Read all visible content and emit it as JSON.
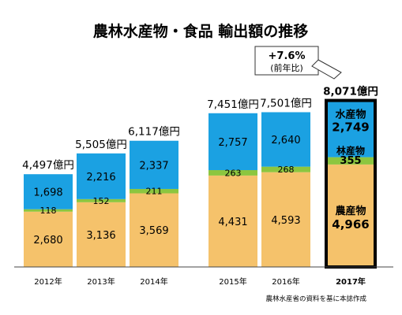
{
  "chart_data": {
    "type": "bar",
    "stacked": true,
    "title": "農林水産物・食品 輸出額の推移",
    "source": "農林水産省の資料を基に本誌作成",
    "categories": [
      "2012年",
      "2013年",
      "2014年",
      "2015年",
      "2016年",
      "2017年"
    ],
    "totals": [
      "4,497億円",
      "5,505億円",
      "6,117億円",
      "7,451億円",
      "7,501億円",
      "8,071億円"
    ],
    "series": [
      {
        "name": "農産物",
        "values": [
          2680,
          3136,
          3569,
          4431,
          4593,
          4966
        ],
        "labels": [
          "2,680",
          "3,136",
          "3,569",
          "4,431",
          "4,593",
          "4,966"
        ]
      },
      {
        "name": "林産物",
        "values": [
          118,
          152,
          211,
          263,
          268,
          355
        ],
        "labels": [
          "118",
          "152",
          "211",
          "263",
          "268",
          "355"
        ]
      },
      {
        "name": "水産物",
        "values": [
          1698,
          2216,
          2337,
          2757,
          2640,
          2749
        ],
        "labels": [
          "1,698",
          "2,216",
          "2,337",
          "2,757",
          "2,640",
          "2,749"
        ]
      }
    ],
    "highlight_index": 5,
    "callout": {
      "line1": "+7.6%",
      "line2": "(前年比)"
    },
    "colors": {
      "agri": "#f5c26b",
      "forest": "#8cc63f",
      "fish": "#1ba1e2",
      "highlight_border": "#000000"
    }
  }
}
